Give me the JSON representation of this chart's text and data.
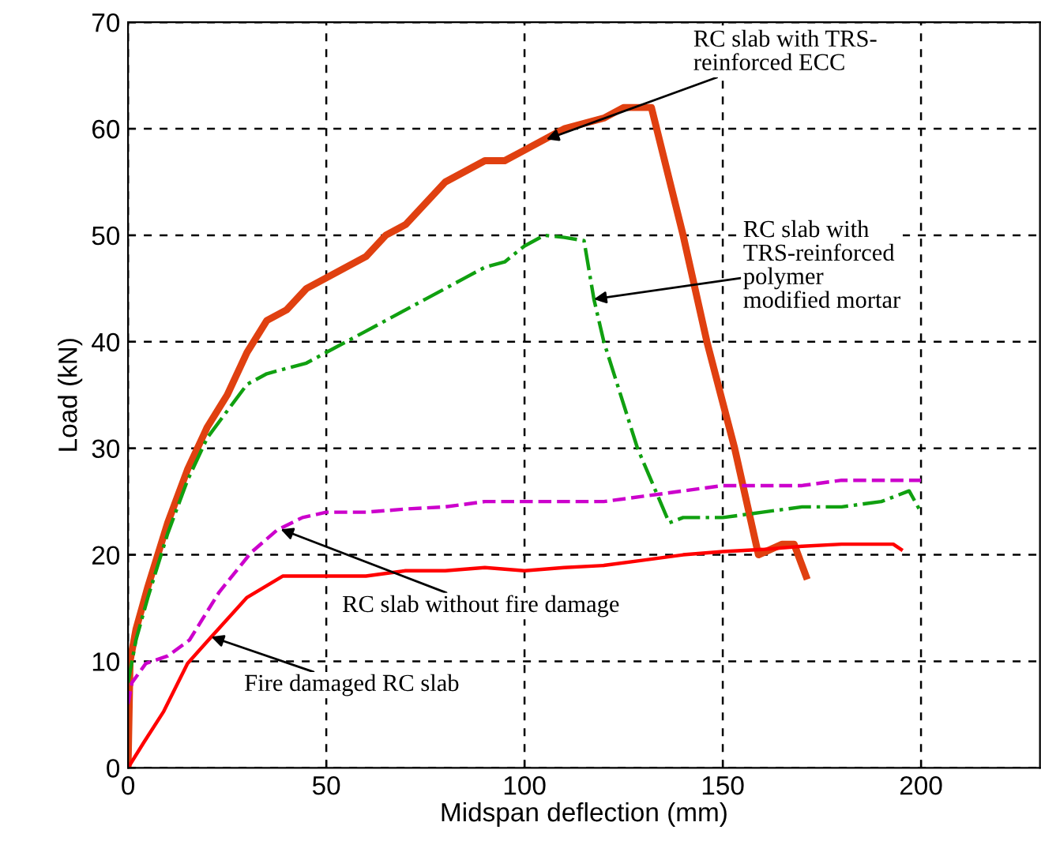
{
  "chart_data": {
    "type": "line",
    "xlabel": "Midspan deflection (mm)",
    "ylabel": "Load (kN)",
    "xlim": [
      0,
      230
    ],
    "ylim": [
      0,
      70
    ],
    "xticks": [
      0,
      50,
      100,
      150,
      200
    ],
    "yticks": [
      0,
      10,
      20,
      30,
      40,
      50,
      60,
      70
    ],
    "grid": true,
    "legend": false,
    "series": [
      {
        "color": "#e04010",
        "line_style": "solid",
        "x": [
          0,
          0.5,
          2,
          5,
          10,
          15,
          20,
          25,
          30,
          35,
          40,
          45,
          50,
          55,
          60,
          65,
          70,
          75,
          80,
          85,
          90,
          95,
          100,
          105,
          110,
          115,
          120,
          125,
          132,
          140,
          146,
          153,
          159,
          162,
          165,
          168,
          170,
          171
        ],
        "values": [
          0,
          10,
          13,
          17,
          23,
          28,
          32,
          35,
          39,
          42,
          43,
          45,
          46,
          47,
          48,
          50,
          51,
          53,
          55,
          56,
          57,
          57,
          58,
          59,
          60,
          60.5,
          61,
          62,
          62,
          50,
          40,
          30,
          20,
          20.5,
          21,
          21,
          19,
          18
        ]
      },
      {
        "color": "#10a010",
        "line_style": "dashdot",
        "x": [
          0,
          2,
          5,
          10,
          15,
          20,
          25,
          30,
          35,
          40,
          45,
          50,
          55,
          60,
          65,
          70,
          75,
          80,
          85,
          90,
          95,
          100,
          105,
          110,
          115,
          117.5,
          120,
          128.5,
          136.5,
          140,
          150,
          160,
          170,
          180,
          190,
          197,
          200
        ],
        "values": [
          8,
          12,
          16,
          22,
          27,
          31,
          33.5,
          36,
          37,
          37.5,
          38,
          39,
          40,
          41,
          42,
          43,
          44,
          45,
          46,
          47,
          47.5,
          49,
          50,
          49.8,
          49.5,
          44,
          40,
          30,
          23,
          23.5,
          23.5,
          24,
          24.5,
          24.5,
          25,
          26,
          24
        ]
      },
      {
        "color": "#cc00cc",
        "line_style": "dashed",
        "x": [
          0,
          1,
          4.5,
          10,
          15.5,
          23,
          31,
          37.5,
          44,
          50,
          60,
          70,
          80,
          90,
          100,
          110,
          120,
          130,
          140,
          150,
          160,
          170,
          180,
          190,
          200
        ],
        "values": [
          6,
          8,
          9.8,
          10.5,
          12,
          16.5,
          20.2,
          22.3,
          23.5,
          24,
          24,
          24.3,
          24.5,
          25,
          25,
          25,
          25,
          25.5,
          26,
          26.5,
          26.5,
          26.5,
          27,
          27,
          27
        ]
      },
      {
        "color": "#ff0000",
        "line_style": "solid",
        "x": [
          0,
          4,
          9,
          15,
          21,
          30,
          39,
          45,
          50,
          60,
          70,
          80,
          90,
          100,
          110,
          120,
          130,
          140,
          150,
          160,
          170,
          180,
          193,
          195
        ],
        "values": [
          0,
          2.4,
          5.3,
          9.8,
          12.3,
          16,
          18,
          18,
          18,
          18,
          18.5,
          18.5,
          18.8,
          18.5,
          18.8,
          19,
          19.5,
          20,
          20.3,
          20.5,
          20.8,
          21,
          21,
          20.5
        ]
      }
    ],
    "annotations": [
      {
        "text": "RC slab with TRS-\nreinforced ECC",
        "x": 105.5,
        "y": 59
      },
      {
        "text": "RC slab with\nTRS-reinforced\npolymer\nmodified mortar",
        "x": 117.5,
        "y": 44
      },
      {
        "text": "RC slab without fire damage",
        "x": 38.5,
        "y": 22.4
      },
      {
        "text": "Fire damaged RC slab",
        "x": 21,
        "y": 12.3
      }
    ]
  }
}
